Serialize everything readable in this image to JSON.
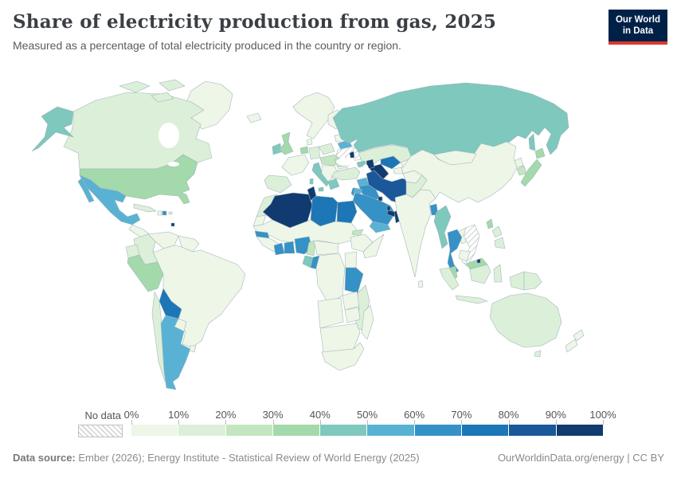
{
  "header": {
    "title": "Share of electricity production from gas, 2025",
    "subtitle": "Measured as a percentage of total electricity produced in the country or region.",
    "logo_line1": "Our World",
    "logo_line2": "in Data",
    "logo_bg_color": "#002147",
    "logo_accent_color": "#d8392f"
  },
  "legend": {
    "no_data_label": "No data",
    "tick_labels": [
      "0%",
      "10%",
      "20%",
      "30%",
      "40%",
      "50%",
      "60%",
      "70%",
      "80%",
      "90%",
      "100%"
    ]
  },
  "footer": {
    "source_label": "Data source:",
    "source_text": " Ember (2026); Energy Institute - Statistical Review of World Energy (2025)",
    "link_text": "OurWorldinData.org/energy | CC BY"
  },
  "chart_data": {
    "type": "heatmap",
    "subtype": "choropleth-world-map",
    "title": "Share of electricity production from gas, 2025",
    "unit": "%",
    "domain": [
      0,
      100
    ],
    "bin_size": 10,
    "palette": [
      "#edf6e7",
      "#dcefd8",
      "#c3e6c0",
      "#a3d9ab",
      "#7ec8bd",
      "#59b2d3",
      "#3591c6",
      "#1d76b5",
      "#1a5899",
      "#113a70"
    ],
    "no_data_style": "gray-diagonal-hatch",
    "values": {
      "greenland": 3,
      "canada": 12,
      "alaska": 45,
      "united-states": 36,
      "mexico": 57,
      "central-america": 8,
      "cuba": 15,
      "haiti": 4,
      "dominican-republic": 62,
      "puerto-rico": 15,
      "trinidad-and-tobago": 95,
      "colombia": 15,
      "venezuela": 8,
      "guyana-suriname": 5,
      "ecuador": 15,
      "peru": 35,
      "brazil": 5,
      "bolivia": 72,
      "paraguay": 2,
      "chile": 15,
      "argentina": 55,
      "uruguay": 5,
      "iceland": 2,
      "ireland": 45,
      "united-kingdom": 35,
      "scandinavia": 3,
      "finland": 5,
      "denmark": 5,
      "baltic-states": 5,
      "poland": 10,
      "germany": 15,
      "benelux": 32,
      "france": 6,
      "iberia": 18,
      "italy": 45,
      "central-europe": 25,
      "balkans": 8,
      "greece": 42,
      "romania": 22,
      "bulgaria": 8,
      "belarus": 55,
      "ukraine": null,
      "moldova": 92,
      "russia": 43,
      "turkey": 15,
      "georgia": 40,
      "azerbaijan": 92,
      "kazakhstan": 15,
      "turkmenistan": 95,
      "uzbekistan": 72,
      "kyrgyzstan": 4,
      "tajikistan": 5,
      "syria": 55,
      "iraq": 65,
      "iran": 85,
      "israel": 65,
      "jordan": 55,
      "saudi-arabia": 62,
      "kuwait": 95,
      "qatar": 97,
      "united-arab-emirates": 92,
      "oman": 95,
      "yemen": 55,
      "afghanistan": 3,
      "pakistan": 12,
      "india": 4,
      "sri-lanka": 5,
      "bangladesh": 62,
      "myanmar": 45,
      "thailand": 62,
      "laos": 3,
      "vietnam": null,
      "cambodia": 3,
      "malaysia": 38,
      "singapore": 95,
      "brunei": 92,
      "indonesia": 18,
      "philippines": 15,
      "papua-new-guinea": 15,
      "china": 3,
      "mongolia": 1,
      "north-korea": 2,
      "south-korea": 28,
      "japan": 33,
      "taiwan": 35,
      "australia": 17,
      "new-zealand": 8,
      "morocco": 12,
      "western-sahara": 2,
      "algeria": 97,
      "tunisia": 92,
      "libya": 72,
      "egypt": 75,
      "sahel": 2,
      "senegal": 60,
      "west-africa-coast": 4,
      "cote-divoire": 65,
      "ghana": 60,
      "nigeria": 65,
      "cameroon": 28,
      "central-african-republic": 3,
      "gabon": 45,
      "congo": 62,
      "democratic-republic-of-congo": 2,
      "ethiopia": 2,
      "eritrea": 20,
      "somalia": 8,
      "kenya": 5,
      "tanzania": 62,
      "angola": 4,
      "zambia": 2,
      "zimbabwe": 2,
      "mozambique": 15,
      "namibia-botswana": 4,
      "south-africa": 4,
      "madagascar": 2
    }
  }
}
